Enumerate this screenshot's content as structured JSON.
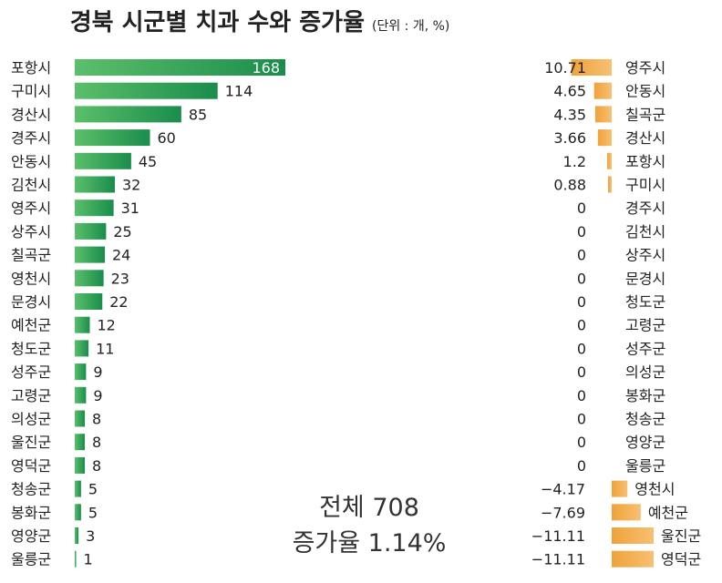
{
  "title": "경북 시군별 치과 수와 증가율",
  "unit": "(단위 : 개, %)",
  "summary": {
    "total_line": "전체 708",
    "rate_line": "증가율 1.14%"
  },
  "colors": {
    "count_bar_start": "#5bbf6a",
    "count_bar_end": "#1a8d4c",
    "growth_bar_start": "#f0a23a",
    "growth_bar_end": "#f7c072",
    "count_label_inside": "#ffffff"
  },
  "chart_data": [
    {
      "type": "bar",
      "orientation": "horizontal",
      "categories": [
        "포항시",
        "구미시",
        "경산시",
        "경주시",
        "안동시",
        "김천시",
        "영주시",
        "상주시",
        "칠곡군",
        "영천시",
        "문경시",
        "예천군",
        "청도군",
        "성주군",
        "고령군",
        "의성군",
        "울진군",
        "영덕군",
        "청송군",
        "봉화군",
        "영양군",
        "울릉군"
      ],
      "values": [
        168,
        114,
        85,
        60,
        45,
        32,
        31,
        25,
        24,
        23,
        22,
        12,
        11,
        9,
        9,
        8,
        8,
        8,
        5,
        5,
        3,
        1
      ],
      "value_labels": [
        "168",
        "114",
        "85",
        "60",
        "45",
        "32",
        "31",
        "25",
        "24",
        "23",
        "22",
        "12",
        "11",
        "9",
        "9",
        "8",
        "8",
        "8",
        "5",
        "5",
        "3",
        "1"
      ],
      "xlim": [
        0,
        168
      ]
    },
    {
      "type": "bar",
      "orientation": "horizontal",
      "categories": [
        "영주시",
        "안동시",
        "칠곡군",
        "경산시",
        "포항시",
        "구미시",
        "경주시",
        "김천시",
        "상주시",
        "문경시",
        "청도군",
        "고령군",
        "성주군",
        "의성군",
        "봉화군",
        "청송군",
        "영양군",
        "울릉군",
        "영천시",
        "예천군",
        "울진군",
        "영덕군"
      ],
      "values": [
        10.71,
        4.65,
        4.35,
        3.66,
        1.2,
        0.88,
        0,
        0,
        0,
        0,
        0,
        0,
        0,
        0,
        0,
        0,
        0,
        0,
        -4.17,
        -7.69,
        -11.11,
        -11.11
      ],
      "value_labels": [
        "10.71",
        "4.65",
        "4.35",
        "3.66",
        "1.2",
        "0.88",
        "0",
        "0",
        "0",
        "0",
        "0",
        "0",
        "0",
        "0",
        "0",
        "0",
        "0",
        "0",
        "−4.17",
        "−7.69",
        "−11.11",
        "−11.11"
      ],
      "xlim": [
        0,
        11.11
      ]
    }
  ]
}
